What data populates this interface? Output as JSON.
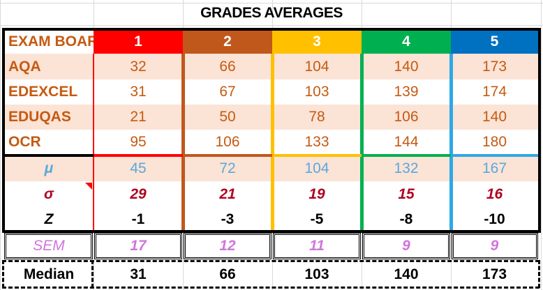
{
  "title": "GRADES AVERAGES",
  "header": {
    "label": "EXAM BOAR",
    "grades": [
      "1",
      "2",
      "3",
      "4",
      "5"
    ]
  },
  "grade_colors": [
    "#ff0000",
    "#c0581c",
    "#ffc000",
    "#00b050",
    "#0070c0"
  ],
  "boards": [
    {
      "name": "AQA",
      "values": [
        "32",
        "66",
        "104",
        "140",
        "173"
      ]
    },
    {
      "name": "EDEXCEL",
      "values": [
        "31",
        "67",
        "103",
        "139",
        "174"
      ]
    },
    {
      "name": "EDUQAS",
      "values": [
        "21",
        "50",
        "78",
        "106",
        "140"
      ]
    },
    {
      "name": "OCR",
      "values": [
        "95",
        "106",
        "133",
        "144",
        "180"
      ]
    }
  ],
  "stats": {
    "mean": {
      "symbol": "μ",
      "values": [
        "45",
        "72",
        "104",
        "132",
        "167"
      ]
    },
    "sd": {
      "symbol": "σ",
      "values": [
        "29",
        "21",
        "19",
        "15",
        "16"
      ]
    },
    "z": {
      "symbol": "Z",
      "values": [
        "-1",
        "-3",
        "-5",
        "-8",
        "-10"
      ]
    },
    "sem": {
      "symbol": "SEM",
      "values": [
        "17",
        "12",
        "11",
        "9",
        "9"
      ]
    },
    "median": {
      "label": "Median",
      "values": [
        "31",
        "66",
        "103",
        "140",
        "173"
      ]
    }
  }
}
